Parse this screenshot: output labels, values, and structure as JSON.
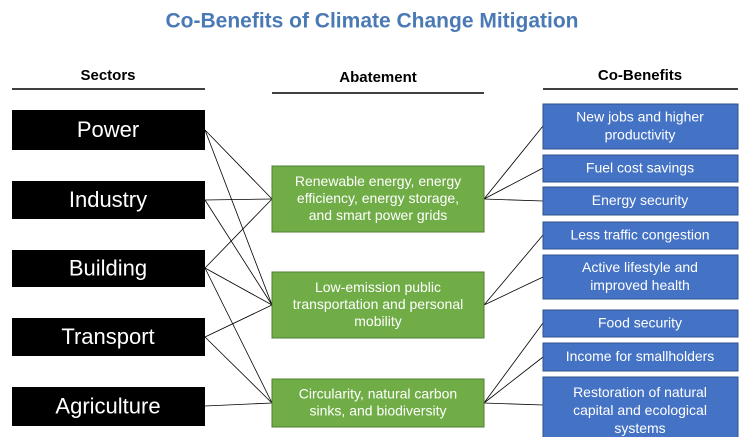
{
  "title": "Co-Benefits of Climate Change Mitigation",
  "headers": {
    "sectors": "Sectors",
    "abatement": "Abatement",
    "cobenefits": "Co-Benefits"
  },
  "sectors": [
    "Power",
    "Industry",
    "Building",
    "Transport",
    "Agriculture"
  ],
  "abatement": [
    [
      "Renewable energy, energy",
      "efficiency, energy storage,",
      "and smart power grids"
    ],
    [
      "Low-emission public",
      "transportation and personal",
      "mobility"
    ],
    [
      "Circularity, natural carbon",
      "sinks, and biodiversity"
    ]
  ],
  "cobenefits": [
    [
      "New jobs and higher",
      "productivity"
    ],
    [
      "Fuel cost savings"
    ],
    [
      "Energy security"
    ],
    [
      "Less traffic congestion"
    ],
    [
      "Active lifestyle and",
      "improved health"
    ],
    [
      "Food security"
    ],
    [
      "Income for smallholders"
    ],
    [
      "Restoration of natural",
      "capital and ecological",
      "systems"
    ]
  ]
}
